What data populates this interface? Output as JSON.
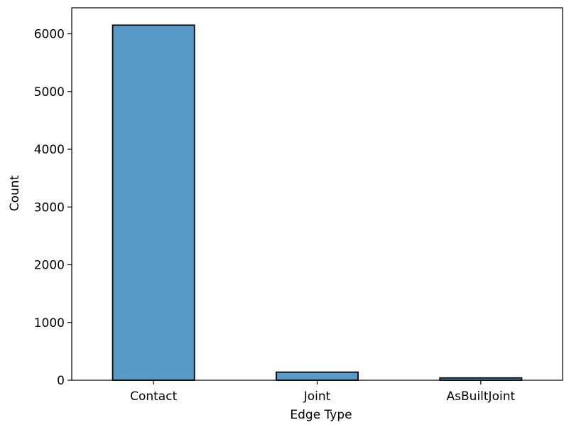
{
  "chart_data": {
    "type": "bar",
    "title": "",
    "xlabel": "Edge Type",
    "ylabel": "Count",
    "categories": [
      "Contact",
      "Joint",
      "AsBuiltJoint"
    ],
    "values": [
      6150,
      140,
      40
    ],
    "ylim": [
      0,
      6450
    ],
    "yticks": [
      0,
      1000,
      2000,
      3000,
      4000,
      5000,
      6000
    ],
    "ytick_labels": [
      "0",
      "1000",
      "2000",
      "3000",
      "4000",
      "5000",
      "6000"
    ],
    "grid": false,
    "legend": "none",
    "colors": {
      "bar_fill": "#5799c7",
      "bar_edge": "#000000",
      "axis": "#000000"
    }
  }
}
